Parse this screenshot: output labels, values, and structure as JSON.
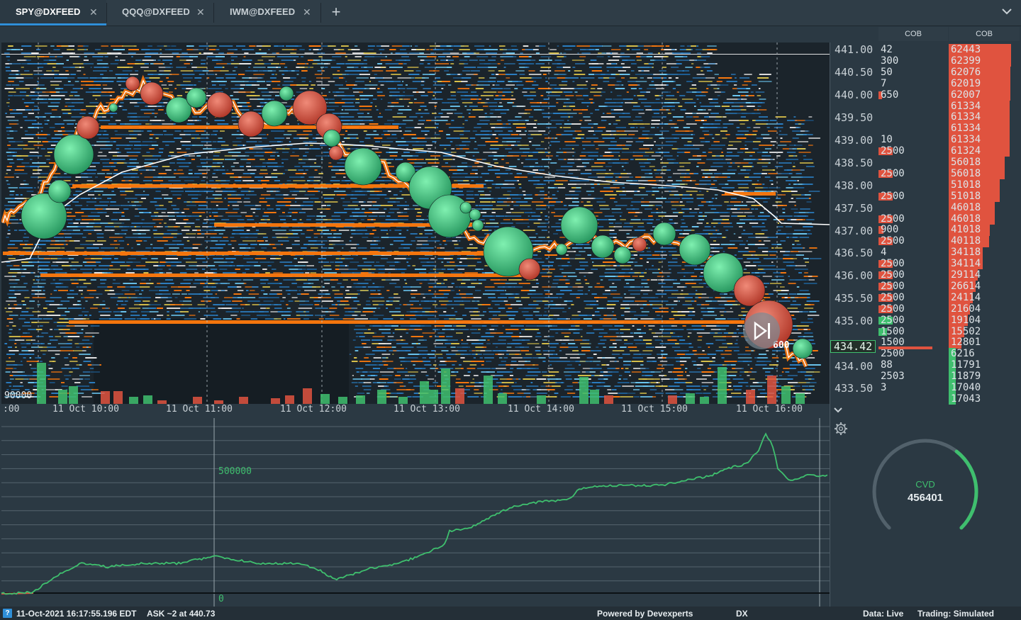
{
  "tabs": [
    {
      "label": "SPY@DXFEED",
      "active": true
    },
    {
      "label": "QQQ@DXFEED",
      "active": false
    },
    {
      "label": "IWM@DXFEED",
      "active": false
    }
  ],
  "add_tab_symbol": "+",
  "close_symbol": "✕",
  "chart": {
    "volume_axis_label": "90000",
    "time_labels": [
      ":00",
      "11 Oct 10:00",
      "11 Oct 11:00",
      "11 Oct 12:00",
      "11 Oct 13:00",
      "11 Oct 14:00",
      "11 Oct 15:00",
      "11 Oct 16:00"
    ],
    "price_labels": [
      "441.00",
      "440.50",
      "440.00",
      "439.50",
      "439.00",
      "438.50",
      "438.00",
      "437.50",
      "437.00",
      "436.50",
      "436.00",
      "435.50",
      "435.00",
      "434.00",
      "433.50"
    ],
    "current_price": "434.42",
    "last_trade_label": "600",
    "colors": {
      "buy": "#3fbf6e",
      "sell": "#e0533f",
      "liquidity_high": "#ff7a0d",
      "liquidity_low": "#2b7fc4",
      "vwap": "#ffffff"
    }
  },
  "cob": {
    "header_left": "COB",
    "header_right": "COB",
    "bid_sizes": [
      "42",
      "300",
      "50",
      "7",
      "650",
      "",
      "",
      "",
      "10",
      "2500",
      "",
      "2500",
      "",
      "2500",
      "",
      "2500",
      "900",
      "2500",
      "4",
      "2500",
      "2500",
      "2500",
      "2500",
      "2500",
      "2500",
      "1500",
      "1500",
      "2500",
      "88",
      "2503",
      "3"
    ],
    "cumulative": [
      "62443",
      "62399",
      "62076",
      "62019",
      "62007",
      "61334",
      "61334",
      "61334",
      "61334",
      "61324",
      "56018",
      "56018",
      "51018",
      "51018",
      "46018",
      "46018",
      "41018",
      "40118",
      "34118",
      "34114",
      "29114",
      "26614",
      "24114",
      "21604",
      "19104",
      "15502",
      "12801",
      "6216",
      "11791",
      "11879",
      "17040",
      "17043"
    ]
  },
  "cvd_pane": {
    "mark_high": "500000",
    "mark_zero": "0"
  },
  "cvd_gauge": {
    "label": "CVD",
    "value": "456401",
    "fill_fraction": 0.36
  },
  "statusbar": {
    "help": "?",
    "timestamp": "11-Oct-2021 16:17:55.196 EDT",
    "ask_info": "ASK ~2 at 440.73",
    "powered": "Powered by Devexperts",
    "brand": "DX",
    "data_status": "Data: Live",
    "trading_status": "Trading: Simulated"
  }
}
